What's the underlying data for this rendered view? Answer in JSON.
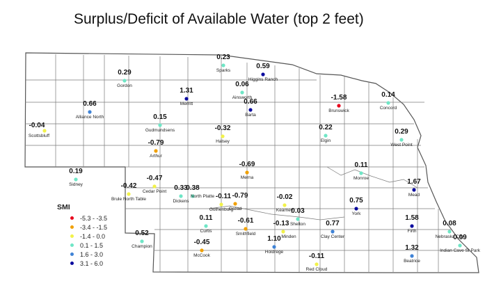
{
  "title": "Surplus/Deficit of Available Water (top 2 feet)",
  "legend": {
    "title": "SMI",
    "items": [
      {
        "label": "-5.3 - -3.5",
        "color": "#e8001c"
      },
      {
        "label": "-3.4 - -1.5",
        "color": "#f0a000"
      },
      {
        "label": "-1.4 - 0.0",
        "color": "#f2f24a"
      },
      {
        "label": "0.1 - 1.5",
        "color": "#6fe6c6"
      },
      {
        "label": "1.6 - 3.0",
        "color": "#3f83d6"
      },
      {
        "label": "3.1 - 6.0",
        "color": "#0a0a9e"
      }
    ]
  },
  "stations": [
    {
      "name": "Sparks",
      "value": "0.23",
      "color": "#6fe6c6"
    },
    {
      "name": "Higgins Ranch",
      "value": "0.59",
      "color": "#0a0a9e"
    },
    {
      "name": "Gordon",
      "value": "0.29",
      "color": "#6fe6c6"
    },
    {
      "name": "Merritt",
      "value": "1.31",
      "color": "#0a0a9e"
    },
    {
      "name": "Ainsworth",
      "value": "0.06",
      "color": "#6fe6c6"
    },
    {
      "name": "Barta",
      "value": "0.66",
      "color": "#0a0a9e"
    },
    {
      "name": "Brunswick",
      "value": "-1.58",
      "color": "#e8001c"
    },
    {
      "name": "Concord",
      "value": "0.14",
      "color": "#6fe6c6"
    },
    {
      "name": "Alliance North",
      "value": "0.66",
      "color": "#3f83d6"
    },
    {
      "name": "Scottsbluff",
      "value": "-0.04",
      "color": "#f2f24a"
    },
    {
      "name": "Gudmundsens",
      "value": "0.15",
      "color": "#6fe6c6"
    },
    {
      "name": "Halsey",
      "value": "-0.32",
      "color": "#f2f24a"
    },
    {
      "name": "Elgin",
      "value": "0.22",
      "color": "#6fe6c6"
    },
    {
      "name": "West Point",
      "value": "0.29",
      "color": "#6fe6c6"
    },
    {
      "name": "Arthur",
      "value": "-0.79",
      "color": "#f0a000"
    },
    {
      "name": "Merna",
      "value": "-0.69",
      "color": "#f0a000"
    },
    {
      "name": "Monroe",
      "value": "0.11",
      "color": "#6fe6c6"
    },
    {
      "name": "Sidney",
      "value": "0.19",
      "color": "#6fe6c6"
    },
    {
      "name": "Cedar Point",
      "value": "-0.47",
      "color": "#f2f24a"
    },
    {
      "name": "Brule North Table",
      "value": "-0.42",
      "color": "#f2f24a"
    },
    {
      "name": "North Platte",
      "value": "0.38",
      "color": "#6fe6c6"
    },
    {
      "name": "Dickens",
      "value": "0.33",
      "color": "#6fe6c6"
    },
    {
      "name": "Gothenburg",
      "value": "-0.11",
      "color": "#f2f24a"
    },
    {
      "name": "Cozad",
      "value": "-0.79",
      "color": "#f0a000"
    },
    {
      "name": "Mead",
      "value": "1.67",
      "color": "#0a0a9e"
    },
    {
      "name": "Kearney",
      "value": "-0.02",
      "color": "#f2f24a"
    },
    {
      "name": "York",
      "value": "0.75",
      "color": "#0a0a9e"
    },
    {
      "name": "Curtis",
      "value": "0.11",
      "color": "#6fe6c6"
    },
    {
      "name": "Smithfield",
      "value": "-0.61",
      "color": "#f0a000"
    },
    {
      "name": "Shelton",
      "value": "0.03",
      "color": "#6fe6c6"
    },
    {
      "name": "Minden",
      "value": "-0.13",
      "color": "#f2f24a"
    },
    {
      "name": "Clay Center",
      "value": "0.77",
      "color": "#3f83d6"
    },
    {
      "name": "Firth",
      "value": "1.58",
      "color": "#0a0a9e"
    },
    {
      "name": "Nebraska City",
      "value": "0.08",
      "color": "#6fe6c6"
    },
    {
      "name": "Champion",
      "value": "0.52",
      "color": "#6fe6c6"
    },
    {
      "name": "McCook",
      "value": "-0.45",
      "color": "#f0a000"
    },
    {
      "name": "Holdrege",
      "value": "1.10",
      "color": "#3f83d6"
    },
    {
      "name": "Beatrice",
      "value": "1.32",
      "color": "#3f83d6"
    },
    {
      "name": "Indian Cave St Park",
      "value": "0.09",
      "color": "#6fe6c6"
    },
    {
      "name": "Red Cloud",
      "value": "-0.11",
      "color": "#f2f24a"
    }
  ]
}
